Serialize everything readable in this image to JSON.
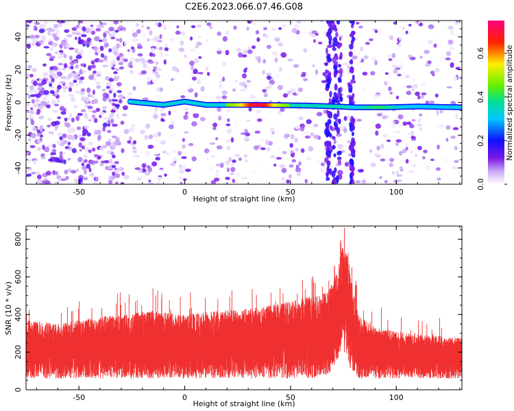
{
  "title": "C2E6.2023.066.07.46.G08",
  "colors": {
    "snr_line": "#f03030",
    "spectrogram_noise": "#7a18e8",
    "text": "#000000",
    "axes": "#000000"
  },
  "chart_data": [
    {
      "type": "heatmap",
      "xlabel": "Height of straight line (km)",
      "ylabel": "Frequency (Hz)",
      "xlim": [
        -75,
        131
      ],
      "ylim": [
        -50,
        50
      ],
      "x_ticks": [
        {
          "value": -50,
          "label": "-50"
        },
        {
          "value": 0,
          "label": "0"
        },
        {
          "value": 50,
          "label": "50"
        },
        {
          "value": 100,
          "label": "100"
        }
      ],
      "y_ticks": [
        {
          "value": -40,
          "label": "-40"
        },
        {
          "value": -20,
          "label": "-20"
        },
        {
          "value": 0,
          "label": "0"
        },
        {
          "value": 20,
          "label": "20"
        },
        {
          "value": 40,
          "label": "40"
        }
      ],
      "signal_trace": [
        {
          "x": -26,
          "y": 0.5
        },
        {
          "x": -10,
          "y": -1.5
        },
        {
          "x": 0,
          "y": 0.5
        },
        {
          "x": 10,
          "y": -1.5
        },
        {
          "x": 35,
          "y": -1.5
        },
        {
          "x": 60,
          "y": -2.0
        },
        {
          "x": 72,
          "y": -2.5
        },
        {
          "x": 80,
          "y": -3.0
        },
        {
          "x": 95,
          "y": -3.0
        },
        {
          "x": 110,
          "y": -2.5
        },
        {
          "x": 131,
          "y": -3.0
        }
      ],
      "colorbar": {
        "label": "Normalized spectral amplitude",
        "range": [
          0,
          0.75
        ],
        "ticks": [
          {
            "value": 0.0,
            "label": "0.0"
          },
          {
            "value": 0.2,
            "label": "0.2"
          },
          {
            "value": 0.4,
            "label": "0.4"
          },
          {
            "value": 0.6,
            "label": "0.6"
          }
        ],
        "stops": [
          {
            "value": 0.0,
            "color": "#ffffff"
          },
          {
            "value": 0.06,
            "color": "#c9a8f5"
          },
          {
            "value": 0.12,
            "color": "#7a18e8"
          },
          {
            "value": 0.2,
            "color": "#1010ff"
          },
          {
            "value": 0.3,
            "color": "#00c8ff"
          },
          {
            "value": 0.38,
            "color": "#00e090"
          },
          {
            "value": 0.45,
            "color": "#60f000"
          },
          {
            "value": 0.55,
            "color": "#ffee00"
          },
          {
            "value": 0.65,
            "color": "#ff2200"
          },
          {
            "value": 0.75,
            "color": "#ff0080"
          }
        ]
      }
    },
    {
      "type": "line",
      "xlabel": "Height of straight line (km)",
      "ylabel": "SNR (10 * v/v)",
      "xlim": [
        -75,
        131
      ],
      "ylim": [
        0,
        870
      ],
      "x_ticks": [
        {
          "value": -50,
          "label": "-50"
        },
        {
          "value": 0,
          "label": "0"
        },
        {
          "value": 50,
          "label": "50"
        },
        {
          "value": 100,
          "label": "100"
        }
      ],
      "y_ticks": [
        {
          "value": 0,
          "label": "0"
        },
        {
          "value": 200,
          "label": "200"
        },
        {
          "value": 400,
          "label": "400"
        },
        {
          "value": 600,
          "label": "600"
        },
        {
          "value": 800,
          "label": "800"
        }
      ],
      "envelope": {
        "x": [
          -75,
          -60,
          -45,
          -30,
          -15,
          0,
          15,
          30,
          45,
          60,
          68,
          72,
          75,
          78,
          82,
          90,
          100,
          115,
          131
        ],
        "upper": [
          370,
          350,
          380,
          400,
          420,
          400,
          420,
          430,
          460,
          500,
          520,
          650,
          800,
          650,
          400,
          330,
          310,
          290,
          280
        ],
        "lower": [
          60,
          60,
          60,
          60,
          60,
          60,
          60,
          60,
          60,
          60,
          80,
          150,
          250,
          120,
          60,
          60,
          60,
          60,
          60
        ]
      },
      "peak": {
        "x": 75.5,
        "y": 860
      }
    }
  ]
}
